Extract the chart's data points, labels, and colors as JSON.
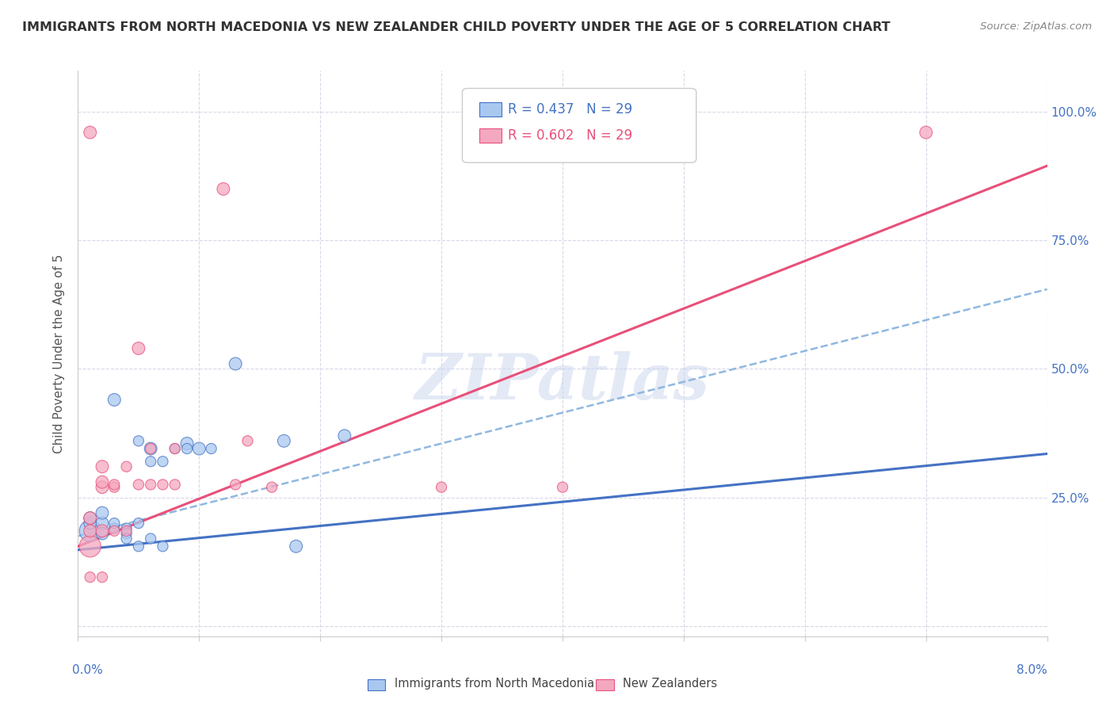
{
  "title": "IMMIGRANTS FROM NORTH MACEDONIA VS NEW ZEALANDER CHILD POVERTY UNDER THE AGE OF 5 CORRELATION CHART",
  "source": "Source: ZipAtlas.com",
  "ylabel": "Child Poverty Under the Age of 5",
  "yticks": [
    0.0,
    0.25,
    0.5,
    0.75,
    1.0
  ],
  "ytick_labels": [
    "",
    "25.0%",
    "50.0%",
    "75.0%",
    "100.0%"
  ],
  "xlim": [
    0.0,
    0.08
  ],
  "ylim": [
    -0.02,
    1.08
  ],
  "watermark": "ZIPatlas",
  "legend_blue_R": "R = 0.437",
  "legend_blue_N": "N = 29",
  "legend_pink_R": "R = 0.602",
  "legend_pink_N": "N = 29",
  "legend_label_blue": "Immigrants from North Macedonia",
  "legend_label_pink": "New Zealanders",
  "blue_scatter": [
    [
      0.001,
      0.185
    ],
    [
      0.001,
      0.2
    ],
    [
      0.001,
      0.21
    ],
    [
      0.002,
      0.2
    ],
    [
      0.002,
      0.18
    ],
    [
      0.002,
      0.22
    ],
    [
      0.003,
      0.44
    ],
    [
      0.003,
      0.19
    ],
    [
      0.003,
      0.2
    ],
    [
      0.004,
      0.19
    ],
    [
      0.004,
      0.18
    ],
    [
      0.004,
      0.17
    ],
    [
      0.005,
      0.36
    ],
    [
      0.005,
      0.2
    ],
    [
      0.005,
      0.155
    ],
    [
      0.006,
      0.345
    ],
    [
      0.006,
      0.32
    ],
    [
      0.006,
      0.17
    ],
    [
      0.007,
      0.32
    ],
    [
      0.007,
      0.155
    ],
    [
      0.008,
      0.345
    ],
    [
      0.009,
      0.355
    ],
    [
      0.009,
      0.345
    ],
    [
      0.01,
      0.345
    ],
    [
      0.011,
      0.345
    ],
    [
      0.013,
      0.51
    ],
    [
      0.017,
      0.36
    ],
    [
      0.018,
      0.155
    ],
    [
      0.022,
      0.37
    ]
  ],
  "blue_sizes": [
    380,
    130,
    130,
    130,
    130,
    130,
    130,
    90,
    90,
    90,
    90,
    90,
    90,
    90,
    90,
    130,
    90,
    90,
    90,
    90,
    90,
    130,
    90,
    130,
    90,
    130,
    130,
    130,
    130
  ],
  "pink_scatter": [
    [
      0.001,
      0.155
    ],
    [
      0.001,
      0.185
    ],
    [
      0.001,
      0.21
    ],
    [
      0.001,
      0.095
    ],
    [
      0.002,
      0.27
    ],
    [
      0.002,
      0.31
    ],
    [
      0.002,
      0.28
    ],
    [
      0.002,
      0.185
    ],
    [
      0.003,
      0.27
    ],
    [
      0.003,
      0.275
    ],
    [
      0.004,
      0.185
    ],
    [
      0.004,
      0.31
    ],
    [
      0.005,
      0.54
    ],
    [
      0.005,
      0.275
    ],
    [
      0.006,
      0.345
    ],
    [
      0.006,
      0.275
    ],
    [
      0.007,
      0.275
    ],
    [
      0.008,
      0.275
    ],
    [
      0.008,
      0.345
    ],
    [
      0.012,
      0.85
    ],
    [
      0.013,
      0.275
    ],
    [
      0.014,
      0.36
    ],
    [
      0.016,
      0.27
    ],
    [
      0.03,
      0.27
    ],
    [
      0.04,
      0.27
    ],
    [
      0.001,
      0.96
    ],
    [
      0.07,
      0.96
    ],
    [
      0.002,
      0.095
    ],
    [
      0.003,
      0.185
    ]
  ],
  "pink_sizes": [
    380,
    130,
    130,
    90,
    130,
    130,
    130,
    130,
    90,
    90,
    90,
    90,
    130,
    90,
    90,
    90,
    90,
    90,
    90,
    130,
    90,
    90,
    90,
    90,
    90,
    130,
    130,
    90,
    90
  ],
  "blue_line_x": [
    0.0,
    0.08
  ],
  "blue_line_y": [
    0.148,
    0.335
  ],
  "pink_line_x": [
    0.0,
    0.08
  ],
  "pink_line_y": [
    0.155,
    0.895
  ],
  "dashed_line_x": [
    0.0,
    0.08
  ],
  "dashed_line_y": [
    0.175,
    0.655
  ],
  "blue_color": "#a8c8f0",
  "pink_color": "#f4a8c0",
  "blue_line_color": "#4472c4",
  "pink_line_color": "#e8507a",
  "dashed_line_color": "#90b8e0",
  "background_color": "#ffffff",
  "grid_color": "#d8d8e8"
}
